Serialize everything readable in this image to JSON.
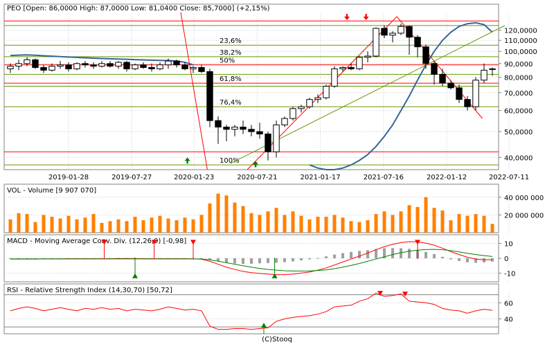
{
  "chart_data": [
    {
      "type": "candlestick",
      "title": "PEO [Open: 86,0000  High: 87,0000  Low: 81,0400  Close: 85,7000] (+2,15%)",
      "y_scale": "log",
      "ylim": [
        36000,
        135000
      ],
      "y_ticks": [
        40000,
        50000,
        60000,
        70000,
        80000,
        90000,
        100000,
        110000,
        120000
      ],
      "y_tick_labels": [
        "40,0000",
        "50,0000",
        "60,0000",
        "70,0000",
        "80,0000",
        "90,0000",
        "100,0000",
        "110,0000",
        "120,0000"
      ],
      "x_tick_labels": [
        "2019-01-28",
        "2019-07-27",
        "2020-01-23",
        "2020-07-21",
        "2021-01-17",
        "2021-07-16",
        "2022-01-12",
        "2022-07-11"
      ],
      "ohlc": [
        [
          86000,
          90000,
          83000,
          88000
        ],
        [
          88000,
          93000,
          85000,
          90000
        ],
        [
          90000,
          95000,
          88000,
          93000
        ],
        [
          93000,
          94000,
          86000,
          87000
        ],
        [
          87000,
          89000,
          83000,
          85000
        ],
        [
          85000,
          90000,
          84000,
          88000
        ],
        [
          88000,
          92000,
          86000,
          89000
        ],
        [
          89000,
          91000,
          84000,
          86000
        ],
        [
          86000,
          91000,
          85000,
          90000
        ],
        [
          90000,
          92000,
          87000,
          89000
        ],
        [
          89000,
          91000,
          86000,
          88000
        ],
        [
          88000,
          92000,
          87000,
          90000
        ],
        [
          90000,
          92000,
          87000,
          88000
        ],
        [
          88000,
          92000,
          86000,
          91000
        ],
        [
          91000,
          92000,
          84000,
          86000
        ],
        [
          86000,
          90000,
          85000,
          89000
        ],
        [
          89000,
          91000,
          86000,
          87000
        ],
        [
          87000,
          90000,
          84000,
          86000
        ],
        [
          86000,
          91000,
          85000,
          89000
        ],
        [
          89000,
          94000,
          86000,
          92000
        ],
        [
          92000,
          93000,
          87000,
          89000
        ],
        [
          89000,
          91000,
          85000,
          86000
        ],
        [
          86000,
          88000,
          83000,
          87000
        ],
        [
          87000,
          89000,
          83000,
          84000
        ],
        [
          84000,
          86000,
          52000,
          55000
        ],
        [
          55000,
          57000,
          45000,
          52000
        ],
        [
          52000,
          53000,
          46000,
          51000
        ],
        [
          51000,
          53000,
          48000,
          52000
        ],
        [
          52000,
          55000,
          49000,
          51000
        ],
        [
          51000,
          53000,
          48000,
          50000
        ],
        [
          50000,
          54000,
          47000,
          49000
        ],
        [
          49000,
          50000,
          39000,
          42000
        ],
        [
          42000,
          55000,
          40000,
          53000
        ],
        [
          53000,
          57000,
          52000,
          56000
        ],
        [
          56000,
          62000,
          55000,
          61000
        ],
        [
          61000,
          63000,
          59000,
          62000
        ],
        [
          62000,
          67000,
          61000,
          66000
        ],
        [
          66000,
          69000,
          64000,
          67000
        ],
        [
          67000,
          75000,
          66000,
          74000
        ],
        [
          74000,
          88000,
          73000,
          86000
        ],
        [
          86000,
          88000,
          84000,
          87000
        ],
        [
          87000,
          90000,
          85000,
          86000
        ],
        [
          86000,
          96000,
          85000,
          95000
        ],
        [
          95000,
          100000,
          91000,
          96000
        ],
        [
          96000,
          123000,
          95000,
          122000
        ],
        [
          122000,
          125000,
          112000,
          115000
        ],
        [
          115000,
          119000,
          108000,
          117000
        ],
        [
          117000,
          127000,
          115000,
          124000
        ],
        [
          124000,
          125000,
          97000,
          113000
        ],
        [
          113000,
          115000,
          95000,
          104000
        ],
        [
          104000,
          106000,
          86000,
          90000
        ],
        [
          90000,
          92000,
          75000,
          82000
        ],
        [
          82000,
          86000,
          74000,
          76000
        ],
        [
          76000,
          78000,
          72000,
          73000
        ],
        [
          73000,
          75000,
          64000,
          66000
        ],
        [
          66000,
          68000,
          60000,
          62000
        ],
        [
          62000,
          80000,
          60000,
          78000
        ],
        [
          78000,
          90000,
          76000,
          85000
        ],
        [
          86000,
          87000,
          81040,
          85700
        ]
      ],
      "moving_average": [
        96500,
        96800,
        97000,
        96700,
        96300,
        95900,
        95600,
        95200,
        94900,
        94600,
        94300,
        94000,
        93800,
        93600,
        93400,
        93100,
        92900,
        92700,
        92500,
        92400,
        92000,
        91000,
        89000,
        86000,
        82000,
        77000,
        72000,
        67000,
        63000,
        59000,
        55000,
        51000,
        47000,
        44000,
        41000,
        39000,
        37500,
        36500,
        36000,
        36000,
        36500,
        37500,
        39000,
        41000,
        44000,
        48000,
        53000,
        60000,
        68000,
        78000,
        89000,
        100000,
        110000,
        118000,
        124000,
        127000,
        128000,
        126000,
        118000
      ],
      "moving_average_visible": [
        [
          0,
          22
        ],
        [
          36,
          58
        ]
      ],
      "horizontal_levels": [
        {
          "value": 130000,
          "color": "#ff0000"
        },
        {
          "value": 125000,
          "color": "#669900"
        },
        {
          "value": 105500,
          "color": "#669900",
          "label": "23,6%"
        },
        {
          "value": 95500,
          "color": "#669900",
          "label": "38,2%"
        },
        {
          "value": 89000,
          "color": "#ff0000",
          "label": "50%"
        },
        {
          "value": 82000,
          "color": "#669900"
        },
        {
          "value": 76000,
          "color": "#ff0000",
          "label": "61,8%"
        },
        {
          "value": 74000,
          "color": "#669900"
        },
        {
          "value": 62000,
          "color": "#669900",
          "label": "76,4%"
        },
        {
          "value": 42000,
          "color": "#ff0000"
        },
        {
          "value": 37500,
          "color": "#669900",
          "label": "100%"
        }
      ],
      "trend_lines": [
        {
          "from": [
            20.5,
            140000
          ],
          "to": [
            23.7,
            36000
          ],
          "color": "#ff0000"
        },
        {
          "from": [
            28.5,
            36000
          ],
          "to": [
            46.5,
            135000
          ],
          "color": "#ff0000"
        },
        {
          "from": [
            46.5,
            135000
          ],
          "to": [
            56.8,
            56000
          ],
          "color": "#ff0000"
        },
        {
          "from": [
            26.5,
            38000
          ],
          "to": [
            59.5,
            125000
          ],
          "color": "#669900"
        }
      ],
      "signal_markers": [
        {
          "index": 21.3,
          "value": 40000,
          "direction": "up"
        },
        {
          "index": 29.5,
          "value": 38800,
          "direction": "up"
        },
        {
          "index": 40.5,
          "value": 131000,
          "direction": "down"
        },
        {
          "index": 42.8,
          "value": 131000,
          "direction": "down"
        }
      ]
    },
    {
      "type": "bar",
      "title": "VOL - Volume [9 907 070]",
      "ylim": [
        0,
        50000000
      ],
      "y_ticks": [
        20000000,
        40000000
      ],
      "y_tick_labels": [
        "20 000 000",
        "40 000 000"
      ],
      "values": [
        15000000,
        22000000,
        21000000,
        12000000,
        20000000,
        18000000,
        16000000,
        19000000,
        15000000,
        17000000,
        21000000,
        11000000,
        13000000,
        15000000,
        13000000,
        18000000,
        14000000,
        17000000,
        19000000,
        16000000,
        14000000,
        17000000,
        15000000,
        20000000,
        33000000,
        44000000,
        42000000,
        34000000,
        30000000,
        22000000,
        20000000,
        24000000,
        28000000,
        20000000,
        24000000,
        19000000,
        15000000,
        18000000,
        18000000,
        20000000,
        17000000,
        13000000,
        12000000,
        14000000,
        21000000,
        24000000,
        20000000,
        24000000,
        31000000,
        29000000,
        40000000,
        28000000,
        25000000,
        14000000,
        21000000,
        19000000,
        21000000,
        19000000,
        9907070
      ],
      "color": "#ff8000"
    },
    {
      "type": "line",
      "title": "MACD - Moving Average Conv. Div. (12,26,9) [-0,98]",
      "ylim": [
        -14,
        14
      ],
      "y_ticks": [
        -10,
        0,
        10
      ],
      "y_tick_labels": [
        "-10",
        "0",
        "10"
      ],
      "series": [
        {
          "role": "macd",
          "color": "#ff0000",
          "values": [
            -0.5,
            -0.5,
            -0.5,
            -0.5,
            -0.4,
            -0.4,
            -0.4,
            -0.3,
            -0.3,
            -0.3,
            -0.3,
            -0.3,
            -0.3,
            -0.2,
            -0.2,
            -0.2,
            -0.3,
            -0.3,
            -0.3,
            -0.3,
            -0.3,
            -0.3,
            -0.4,
            -0.6,
            -2.0,
            -4.0,
            -6.0,
            -7.5,
            -8.8,
            -9.7,
            -10.2,
            -10.7,
            -11.0,
            -11.0,
            -10.7,
            -10.0,
            -9.2,
            -8.0,
            -6.5,
            -4.5,
            -2.5,
            -0.5,
            1.5,
            3.5,
            5.8,
            7.8,
            9.4,
            10.6,
            11.2,
            11.0,
            10.2,
            8.8,
            6.8,
            4.5,
            2.5,
            0.7,
            -0.5,
            -1.0,
            -0.98
          ]
        },
        {
          "role": "signal",
          "color": "#008000",
          "values": [
            -0.4,
            -0.4,
            -0.4,
            -0.4,
            -0.4,
            -0.4,
            -0.4,
            -0.4,
            -0.4,
            -0.4,
            -0.4,
            -0.4,
            -0.4,
            -0.4,
            -0.4,
            -0.4,
            -0.4,
            -0.4,
            -0.4,
            -0.4,
            -0.4,
            -0.4,
            -0.4,
            -0.5,
            -1.0,
            -2.0,
            -3.0,
            -4.0,
            -5.0,
            -6.0,
            -6.8,
            -7.5,
            -8.0,
            -8.4,
            -8.6,
            -8.6,
            -8.5,
            -8.2,
            -7.8,
            -7.0,
            -6.0,
            -4.8,
            -3.5,
            -2.0,
            -0.5,
            1.0,
            2.5,
            3.8,
            4.8,
            5.5,
            5.9,
            6.0,
            5.8,
            5.2,
            4.3,
            3.4,
            2.5,
            1.8,
            1.2
          ]
        },
        {
          "role": "histogram",
          "color": "#a0a0a0",
          "values": [
            -0.1,
            -0.1,
            -0.1,
            -0.1,
            0,
            0,
            0,
            0.1,
            0.1,
            0.1,
            0.1,
            0.1,
            0.1,
            0.2,
            0.2,
            0.2,
            0.1,
            0.1,
            0.1,
            0.1,
            0.1,
            0.1,
            0,
            -0.1,
            -1.0,
            -2.0,
            -3.0,
            -3.5,
            -3.8,
            -3.7,
            -3.4,
            -3.2,
            -3.0,
            -2.6,
            -2.1,
            -1.4,
            -0.7,
            0.2,
            1.3,
            2.5,
            3.5,
            4.3,
            5.0,
            5.5,
            6.3,
            6.8,
            6.9,
            6.8,
            6.4,
            5.5,
            4.3,
            2.8,
            1.0,
            -0.7,
            -1.8,
            -2.7,
            -3.0,
            -2.8,
            -2.2
          ]
        }
      ],
      "signal_markers": [
        {
          "index": 11.3,
          "value": 11.5,
          "direction": "down"
        },
        {
          "index": 15,
          "value": -12.5,
          "direction": "up"
        },
        {
          "index": 17.3,
          "value": 11.5,
          "direction": "down"
        },
        {
          "index": 22,
          "value": 11.5,
          "direction": "down"
        },
        {
          "index": 31.8,
          "value": -12.5,
          "direction": "up"
        },
        {
          "index": 49,
          "value": 11.5,
          "direction": "down"
        }
      ]
    },
    {
      "type": "line",
      "title": "RSI - Relative Strength Index (14,30,70) [50,72]",
      "ylim": [
        25,
        80
      ],
      "y_ticks": [
        40,
        60
      ],
      "y_tick_labels": [
        "40",
        "60"
      ],
      "reference_levels": [
        30,
        70
      ],
      "series": [
        {
          "role": "rsi",
          "color": "#ff0000",
          "values": [
            50,
            53,
            55,
            53,
            50,
            52,
            54,
            52,
            50,
            53,
            52,
            54,
            52,
            53,
            50,
            52,
            51,
            50,
            52,
            55,
            53,
            51,
            52,
            50,
            31,
            27,
            27,
            28,
            28,
            27,
            28,
            29,
            37,
            40,
            42,
            43,
            44,
            46,
            49,
            55,
            56,
            57,
            62,
            65,
            72,
            68,
            69,
            71,
            62,
            61,
            60,
            58,
            53,
            51,
            50,
            47,
            50,
            52,
            50.72
          ]
        }
      ],
      "signal_markers": [
        {
          "index": 30.5,
          "value": 30,
          "direction": "up"
        },
        {
          "index": 44.5,
          "value": 73,
          "direction": "down"
        },
        {
          "index": 47.5,
          "value": 72,
          "direction": "down"
        }
      ]
    }
  ],
  "footer": {
    "copyright": "(C)Stooq"
  }
}
